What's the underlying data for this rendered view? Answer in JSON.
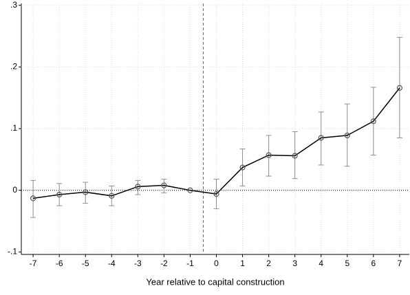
{
  "chart_data": {
    "type": "line",
    "x_label": "Year relative to capital construction",
    "x": [
      -7,
      -6,
      -5,
      -4,
      -3,
      -2,
      -1,
      0,
      1,
      2,
      3,
      4,
      5,
      6,
      7
    ],
    "values": [
      -0.013,
      -0.007,
      -0.003,
      -0.009,
      0.006,
      0.008,
      0,
      -0.006,
      0.037,
      0.057,
      0.056,
      0.085,
      0.089,
      0.112,
      0.166
    ],
    "ci_lower": [
      -0.044,
      -0.025,
      -0.021,
      -0.025,
      -0.007,
      -0.004,
      0,
      -0.03,
      0.007,
      0.023,
      0.019,
      0.041,
      0.039,
      0.057,
      0.085
    ],
    "ci_upper": [
      0.016,
      0.011,
      0.013,
      0.007,
      0.016,
      0.018,
      0,
      0.018,
      0.067,
      0.089,
      0.095,
      0.127,
      0.14,
      0.167,
      0.248
    ],
    "color": "#000000",
    "ci_color": "#8c8c8c",
    "marker_color": "#555555",
    "xlim": [
      -7.45,
      7.37
    ],
    "ylim": [
      -0.104,
      0.303
    ],
    "xticks": [
      -7,
      -6,
      -5,
      -4,
      -3,
      -2,
      -1,
      0,
      1,
      2,
      3,
      4,
      5,
      6,
      7
    ],
    "yticks": [
      {
        "value": -0.1,
        "label": "-.1"
      },
      0,
      {
        "value": 0.1,
        "label": ".1"
      },
      {
        "value": 0.2,
        "label": ".2"
      },
      {
        "value": 0.3,
        "label": ".3"
      }
    ],
    "grid": true,
    "vline": -0.5,
    "hline": 0
  }
}
